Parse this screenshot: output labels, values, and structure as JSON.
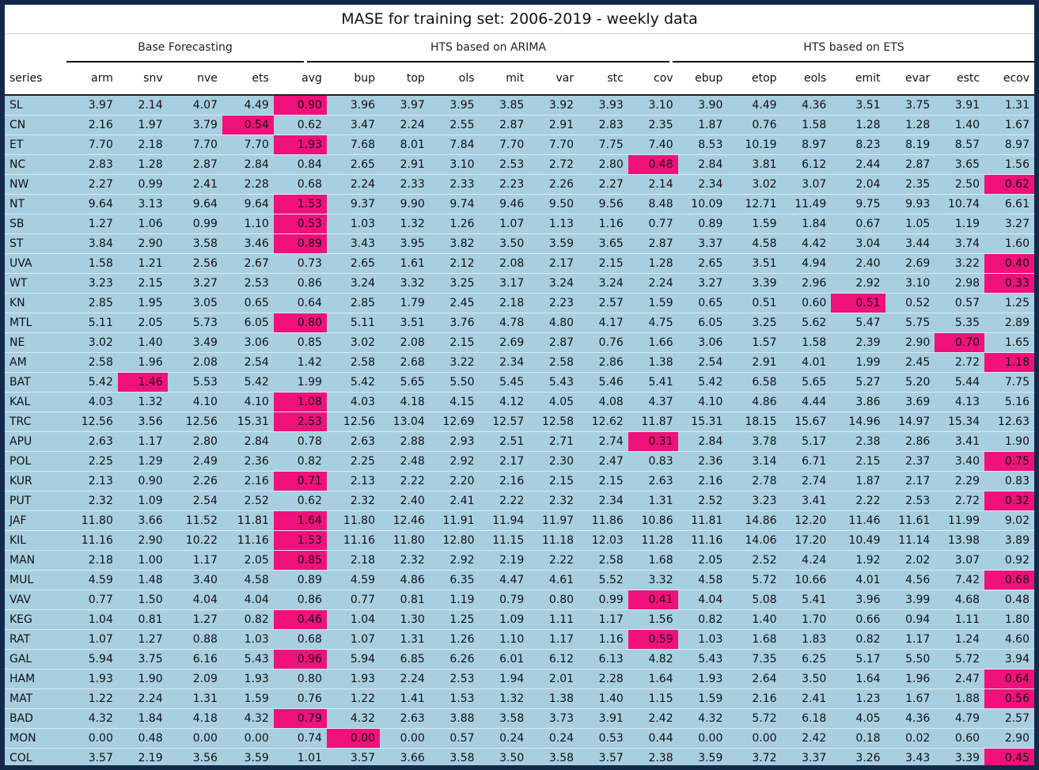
{
  "title": "MASE for training set: 2006-2019 - weekly data",
  "groups": [
    "Base Forecasting",
    "HTS based on ARIMA",
    "HTS based on ETS"
  ],
  "columns": [
    "series",
    "arm",
    "snv",
    "nve",
    "ets",
    "avg",
    "bup",
    "top",
    "ols",
    "mit",
    "var",
    "stc",
    "cov",
    "ebup",
    "etop",
    "eols",
    "emit",
    "evar",
    "estc",
    "ecov"
  ],
  "colors": {
    "highlight": "#f0117a",
    "row_bg": "#a8cfe0",
    "frame": "#13294b"
  },
  "rows": [
    {
      "cells": [
        "SL",
        "3.97",
        "2.14",
        "4.07",
        "4.49",
        "0.90",
        "3.96",
        "3.97",
        "3.95",
        "3.85",
        "3.92",
        "3.93",
        "3.10",
        "3.90",
        "4.49",
        "4.36",
        "3.51",
        "3.75",
        "3.91",
        "1.31"
      ],
      "best": [
        5
      ]
    },
    {
      "cells": [
        "CN",
        "2.16",
        "1.97",
        "3.79",
        "0.54",
        "0.62",
        "3.47",
        "2.24",
        "2.55",
        "2.87",
        "2.91",
        "2.83",
        "2.35",
        "1.87",
        "0.76",
        "1.58",
        "1.28",
        "1.28",
        "1.40",
        "1.67"
      ],
      "best": [
        4
      ]
    },
    {
      "cells": [
        "ET",
        "7.70",
        "2.18",
        "7.70",
        "7.70",
        "1.93",
        "7.68",
        "8.01",
        "7.84",
        "7.70",
        "7.70",
        "7.75",
        "7.40",
        "8.53",
        "10.19",
        "8.97",
        "8.23",
        "8.19",
        "8.57",
        "8.97"
      ],
      "best": [
        5
      ]
    },
    {
      "cells": [
        "NC",
        "2.83",
        "1.28",
        "2.87",
        "2.84",
        "0.84",
        "2.65",
        "2.91",
        "3.10",
        "2.53",
        "2.72",
        "2.80",
        "0.48",
        "2.84",
        "3.81",
        "6.12",
        "2.44",
        "2.87",
        "3.65",
        "1.56"
      ],
      "best": [
        12
      ]
    },
    {
      "cells": [
        "NW",
        "2.27",
        "0.99",
        "2.41",
        "2.28",
        "0.68",
        "2.24",
        "2.33",
        "2.33",
        "2.23",
        "2.26",
        "2.27",
        "2.14",
        "2.34",
        "3.02",
        "3.07",
        "2.04",
        "2.35",
        "2.50",
        "0.62"
      ],
      "best": [
        19
      ]
    },
    {
      "cells": [
        "NT",
        "9.64",
        "3.13",
        "9.64",
        "9.64",
        "1.53",
        "9.37",
        "9.90",
        "9.74",
        "9.46",
        "9.50",
        "9.56",
        "8.48",
        "10.09",
        "12.71",
        "11.49",
        "9.75",
        "9.93",
        "10.74",
        "6.61"
      ],
      "best": [
        5
      ]
    },
    {
      "cells": [
        "SB",
        "1.27",
        "1.06",
        "0.99",
        "1.10",
        "0.53",
        "1.03",
        "1.32",
        "1.26",
        "1.07",
        "1.13",
        "1.16",
        "0.77",
        "0.89",
        "1.59",
        "1.84",
        "0.67",
        "1.05",
        "1.19",
        "3.27"
      ],
      "best": [
        5
      ]
    },
    {
      "cells": [
        "ST",
        "3.84",
        "2.90",
        "3.58",
        "3.46",
        "0.89",
        "3.43",
        "3.95",
        "3.82",
        "3.50",
        "3.59",
        "3.65",
        "2.87",
        "3.37",
        "4.58",
        "4.42",
        "3.04",
        "3.44",
        "3.74",
        "1.60"
      ],
      "best": [
        5
      ]
    },
    {
      "cells": [
        "UVA",
        "1.58",
        "1.21",
        "2.56",
        "2.67",
        "0.73",
        "2.65",
        "1.61",
        "2.12",
        "2.08",
        "2.17",
        "2.15",
        "1.28",
        "2.65",
        "3.51",
        "4.94",
        "2.40",
        "2.69",
        "3.22",
        "0.40"
      ],
      "best": [
        19
      ]
    },
    {
      "cells": [
        "WT",
        "3.23",
        "2.15",
        "3.27",
        "2.53",
        "0.86",
        "3.24",
        "3.32",
        "3.25",
        "3.17",
        "3.24",
        "3.24",
        "2.24",
        "3.27",
        "3.39",
        "2.96",
        "2.92",
        "3.10",
        "2.98",
        "0.33"
      ],
      "best": [
        19
      ]
    },
    {
      "cells": [
        "KN",
        "2.85",
        "1.95",
        "3.05",
        "0.65",
        "0.64",
        "2.85",
        "1.79",
        "2.45",
        "2.18",
        "2.23",
        "2.57",
        "1.59",
        "0.65",
        "0.51",
        "0.60",
        "0.51",
        "0.52",
        "0.57",
        "1.25"
      ],
      "best": [
        16
      ]
    },
    {
      "cells": [
        "MTL",
        "5.11",
        "2.05",
        "5.73",
        "6.05",
        "0.80",
        "5.11",
        "3.51",
        "3.76",
        "4.78",
        "4.80",
        "4.17",
        "4.75",
        "6.05",
        "3.25",
        "5.62",
        "5.47",
        "5.75",
        "5.35",
        "2.89"
      ],
      "best": [
        5
      ]
    },
    {
      "cells": [
        "NE",
        "3.02",
        "1.40",
        "3.49",
        "3.06",
        "0.85",
        "3.02",
        "2.08",
        "2.15",
        "2.69",
        "2.87",
        "0.76",
        "1.66",
        "3.06",
        "1.57",
        "1.58",
        "2.39",
        "2.90",
        "0.70",
        "1.65"
      ],
      "best": [
        18
      ]
    },
    {
      "cells": [
        "AM",
        "2.58",
        "1.96",
        "2.08",
        "2.54",
        "1.42",
        "2.58",
        "2.68",
        "3.22",
        "2.34",
        "2.58",
        "2.86",
        "1.38",
        "2.54",
        "2.91",
        "4.01",
        "1.99",
        "2.45",
        "2.72",
        "1.18"
      ],
      "best": [
        19
      ]
    },
    {
      "cells": [
        "BAT",
        "5.42",
        "1.46",
        "5.53",
        "5.42",
        "1.99",
        "5.42",
        "5.65",
        "5.50",
        "5.45",
        "5.43",
        "5.46",
        "5.41",
        "5.42",
        "6.58",
        "5.65",
        "5.27",
        "5.20",
        "5.44",
        "7.75"
      ],
      "best": [
        2
      ]
    },
    {
      "cells": [
        "KAL",
        "4.03",
        "1.32",
        "4.10",
        "4.10",
        "1.08",
        "4.03",
        "4.18",
        "4.15",
        "4.12",
        "4.05",
        "4.08",
        "4.37",
        "4.10",
        "4.86",
        "4.44",
        "3.86",
        "3.69",
        "4.13",
        "5.16"
      ],
      "best": [
        5
      ]
    },
    {
      "cells": [
        "TRC",
        "12.56",
        "3.56",
        "12.56",
        "15.31",
        "2.53",
        "12.56",
        "13.04",
        "12.69",
        "12.57",
        "12.58",
        "12.62",
        "11.87",
        "15.31",
        "18.15",
        "15.67",
        "14.96",
        "14.97",
        "15.34",
        "12.63"
      ],
      "best": [
        5
      ]
    },
    {
      "cells": [
        "APU",
        "2.63",
        "1.17",
        "2.80",
        "2.84",
        "0.78",
        "2.63",
        "2.88",
        "2.93",
        "2.51",
        "2.71",
        "2.74",
        "0.31",
        "2.84",
        "3.78",
        "5.17",
        "2.38",
        "2.86",
        "3.41",
        "1.90"
      ],
      "best": [
        12
      ]
    },
    {
      "cells": [
        "POL",
        "2.25",
        "1.29",
        "2.49",
        "2.36",
        "0.82",
        "2.25",
        "2.48",
        "2.92",
        "2.17",
        "2.30",
        "2.47",
        "0.83",
        "2.36",
        "3.14",
        "6.71",
        "2.15",
        "2.37",
        "3.40",
        "0.75"
      ],
      "best": [
        19
      ]
    },
    {
      "cells": [
        "KUR",
        "2.13",
        "0.90",
        "2.26",
        "2.16",
        "0.71",
        "2.13",
        "2.22",
        "2.20",
        "2.16",
        "2.15",
        "2.15",
        "2.63",
        "2.16",
        "2.78",
        "2.74",
        "1.87",
        "2.17",
        "2.29",
        "0.83"
      ],
      "best": [
        5
      ]
    },
    {
      "cells": [
        "PUT",
        "2.32",
        "1.09",
        "2.54",
        "2.52",
        "0.62",
        "2.32",
        "2.40",
        "2.41",
        "2.22",
        "2.32",
        "2.34",
        "1.31",
        "2.52",
        "3.23",
        "3.41",
        "2.22",
        "2.53",
        "2.72",
        "0.32"
      ],
      "best": [
        19
      ]
    },
    {
      "cells": [
        "JAF",
        "11.80",
        "3.66",
        "11.52",
        "11.81",
        "1.64",
        "11.80",
        "12.46",
        "11.91",
        "11.94",
        "11.97",
        "11.86",
        "10.86",
        "11.81",
        "14.86",
        "12.20",
        "11.46",
        "11.61",
        "11.99",
        "9.02"
      ],
      "best": [
        5
      ]
    },
    {
      "cells": [
        "KIL",
        "11.16",
        "2.90",
        "10.22",
        "11.16",
        "1.53",
        "11.16",
        "11.80",
        "12.80",
        "11.15",
        "11.18",
        "12.03",
        "11.28",
        "11.16",
        "14.06",
        "17.20",
        "10.49",
        "11.14",
        "13.98",
        "3.89"
      ],
      "best": [
        5
      ]
    },
    {
      "cells": [
        "MAN",
        "2.18",
        "1.00",
        "1.17",
        "2.05",
        "0.85",
        "2.18",
        "2.32",
        "2.92",
        "2.19",
        "2.22",
        "2.58",
        "1.68",
        "2.05",
        "2.52",
        "4.24",
        "1.92",
        "2.02",
        "3.07",
        "0.92"
      ],
      "best": [
        5
      ]
    },
    {
      "cells": [
        "MUL",
        "4.59",
        "1.48",
        "3.40",
        "4.58",
        "0.89",
        "4.59",
        "4.86",
        "6.35",
        "4.47",
        "4.61",
        "5.52",
        "3.32",
        "4.58",
        "5.72",
        "10.66",
        "4.01",
        "4.56",
        "7.42",
        "0.68"
      ],
      "best": [
        19
      ]
    },
    {
      "cells": [
        "VAV",
        "0.77",
        "1.50",
        "4.04",
        "4.04",
        "0.86",
        "0.77",
        "0.81",
        "1.19",
        "0.79",
        "0.80",
        "0.99",
        "0.41",
        "4.04",
        "5.08",
        "5.41",
        "3.96",
        "3.99",
        "4.68",
        "0.48"
      ],
      "best": [
        12
      ]
    },
    {
      "cells": [
        "KEG",
        "1.04",
        "0.81",
        "1.27",
        "0.82",
        "0.46",
        "1.04",
        "1.30",
        "1.25",
        "1.09",
        "1.11",
        "1.17",
        "1.56",
        "0.82",
        "1.40",
        "1.70",
        "0.66",
        "0.94",
        "1.11",
        "1.80"
      ],
      "best": [
        5
      ]
    },
    {
      "cells": [
        "RAT",
        "1.07",
        "1.27",
        "0.88",
        "1.03",
        "0.68",
        "1.07",
        "1.31",
        "1.26",
        "1.10",
        "1.17",
        "1.16",
        "0.59",
        "1.03",
        "1.68",
        "1.83",
        "0.82",
        "1.17",
        "1.24",
        "4.60"
      ],
      "best": [
        12
      ]
    },
    {
      "cells": [
        "GAL",
        "5.94",
        "3.75",
        "6.16",
        "5.43",
        "0.96",
        "5.94",
        "6.85",
        "6.26",
        "6.01",
        "6.12",
        "6.13",
        "4.82",
        "5.43",
        "7.35",
        "6.25",
        "5.17",
        "5.50",
        "5.72",
        "3.94"
      ],
      "best": [
        5
      ]
    },
    {
      "cells": [
        "HAM",
        "1.93",
        "1.90",
        "2.09",
        "1.93",
        "0.80",
        "1.93",
        "2.24",
        "2.53",
        "1.94",
        "2.01",
        "2.28",
        "1.64",
        "1.93",
        "2.64",
        "3.50",
        "1.64",
        "1.96",
        "2.47",
        "0.64"
      ],
      "best": [
        19
      ]
    },
    {
      "cells": [
        "MAT",
        "1.22",
        "2.24",
        "1.31",
        "1.59",
        "0.76",
        "1.22",
        "1.41",
        "1.53",
        "1.32",
        "1.38",
        "1.40",
        "1.15",
        "1.59",
        "2.16",
        "2.41",
        "1.23",
        "1.67",
        "1.88",
        "0.56"
      ],
      "best": [
        19
      ]
    },
    {
      "cells": [
        "BAD",
        "4.32",
        "1.84",
        "4.18",
        "4.32",
        "0.79",
        "4.32",
        "2.63",
        "3.88",
        "3.58",
        "3.73",
        "3.91",
        "2.42",
        "4.32",
        "5.72",
        "6.18",
        "4.05",
        "4.36",
        "4.79",
        "2.57"
      ],
      "best": [
        5
      ]
    },
    {
      "cells": [
        "MON",
        "0.00",
        "0.48",
        "0.00",
        "0.00",
        "0.74",
        "0.00",
        "0.00",
        "0.57",
        "0.24",
        "0.24",
        "0.53",
        "0.44",
        "0.00",
        "0.00",
        "2.42",
        "0.18",
        "0.02",
        "0.60",
        "2.90"
      ],
      "best": [
        6
      ]
    },
    {
      "cells": [
        "COL",
        "3.57",
        "2.19",
        "3.56",
        "3.59",
        "1.01",
        "3.57",
        "3.66",
        "3.58",
        "3.50",
        "3.58",
        "3.57",
        "2.38",
        "3.59",
        "3.72",
        "3.37",
        "3.26",
        "3.43",
        "3.39",
        "0.45"
      ],
      "best": [
        19
      ]
    }
  ]
}
